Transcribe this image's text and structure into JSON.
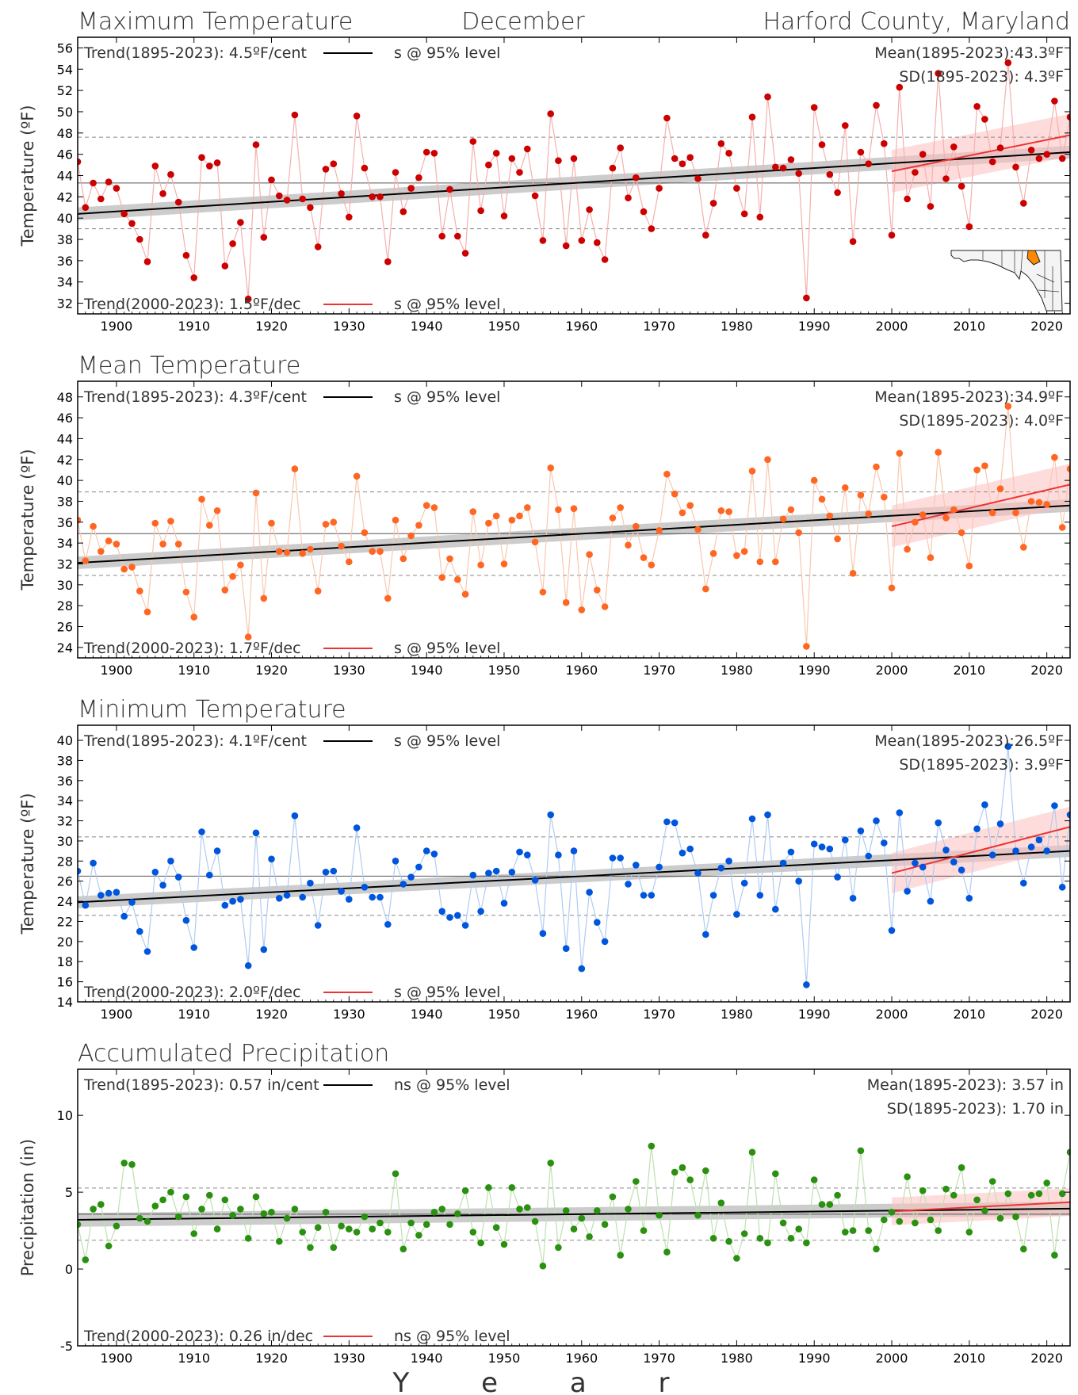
{
  "header": {
    "left": "Maximum Temperature",
    "center": "December",
    "right": "Harford County, Maryland"
  },
  "xlabel": "Y e a r",
  "colors": {
    "trend_long": "#000000",
    "trend_recent": "#ee3333",
    "band_long": "#bbbbbb",
    "band_recent": "#ffc0c0"
  },
  "chart_data": [
    {
      "type": "line",
      "title": "",
      "xlabel": "Year",
      "ylabel": "Temperature (ºF)",
      "xlim": [
        1895,
        2023
      ],
      "ylim": [
        31,
        57
      ],
      "xticks": [
        1900,
        1910,
        1920,
        1930,
        1940,
        1950,
        1960,
        1970,
        1980,
        1990,
        2000,
        2010,
        2020
      ],
      "yticks": [
        32,
        34,
        36,
        38,
        40,
        42,
        44,
        46,
        48,
        50,
        52,
        54,
        56
      ],
      "mean": 43.3,
      "sd": 4.3,
      "trend_long": {
        "y0": 40.4,
        "y1": 46.2,
        "band": 0.6
      },
      "trend_recent": {
        "y0": 44.4,
        "y1": 47.8,
        "band": 2.0
      },
      "texts": {
        "trend_long": "Trend(1895-2023):  4.5ºF/cent",
        "sig_long": "s @ 95% level",
        "mean": "Mean(1895-2023):43.3ºF",
        "sd": "SD(1895-2023): 4.3ºF",
        "trend_recent": "Trend(2000-2023):  1.5ºF/dec",
        "sig_recent": "s @ 95% level"
      },
      "point_color": "#cc0000",
      "line_color": "#f4b0b0",
      "x_start": 1895,
      "values": [
        45.3,
        41.0,
        43.3,
        41.8,
        43.4,
        42.8,
        40.4,
        39.5,
        38.0,
        35.9,
        44.9,
        42.3,
        44.1,
        41.5,
        36.5,
        34.4,
        45.7,
        44.9,
        45.2,
        35.5,
        37.6,
        39.6,
        32.4,
        46.9,
        38.2,
        43.6,
        42.1,
        41.7,
        49.7,
        41.8,
        41.0,
        37.3,
        44.6,
        45.1,
        42.3,
        40.1,
        49.6,
        44.7,
        42.0,
        42.0,
        35.9,
        44.3,
        40.6,
        42.8,
        43.8,
        46.2,
        46.1,
        38.3,
        42.7,
        38.3,
        36.7,
        47.2,
        40.7,
        45.0,
        46.1,
        40.2,
        45.6,
        44.3,
        46.5,
        42.1,
        37.9,
        49.8,
        45.4,
        37.4,
        45.6,
        37.9,
        40.8,
        37.7,
        36.1,
        44.7,
        46.6,
        41.9,
        43.8,
        40.6,
        39.0,
        42.8,
        49.4,
        45.6,
        45.1,
        45.7,
        43.7,
        38.4,
        41.4,
        47.0,
        46.1,
        42.8,
        40.4,
        49.5,
        40.1,
        51.4,
        44.8,
        44.7,
        45.5,
        44.2,
        32.5,
        50.4,
        46.9,
        44.1,
        42.4,
        48.7,
        37.8,
        46.2,
        45.1,
        50.6,
        47.0,
        38.4,
        52.3,
        41.8,
        44.3,
        46.0,
        41.1,
        53.6,
        43.7,
        46.7,
        43.0,
        39.2,
        50.5,
        49.3,
        45.3,
        46.6,
        54.6,
        44.8,
        41.4,
        46.4,
        45.6,
        46.0,
        51.0,
        45.6,
        49.5
      ]
    },
    {
      "type": "line",
      "title": "Mean Temperature",
      "xlabel": "Year",
      "ylabel": "Temperature (ºF)",
      "xlim": [
        1895,
        2023
      ],
      "ylim": [
        23,
        49.5
      ],
      "xticks": [
        1900,
        1910,
        1920,
        1930,
        1940,
        1950,
        1960,
        1970,
        1980,
        1990,
        2000,
        2010,
        2020
      ],
      "yticks": [
        24,
        26,
        28,
        30,
        32,
        34,
        36,
        38,
        40,
        42,
        44,
        46,
        48
      ],
      "mean": 34.9,
      "sd": 4.0,
      "trend_long": {
        "y0": 32.1,
        "y1": 37.6,
        "band": 0.6
      },
      "trend_recent": {
        "y0": 35.6,
        "y1": 39.6,
        "band": 2.0
      },
      "texts": {
        "trend_long": "Trend(1895-2023):  4.3ºF/cent",
        "sig_long": "s @ 95% level",
        "mean": "Mean(1895-2023):34.9ºF",
        "sd": "SD(1895-2023): 4.0ºF",
        "trend_recent": "Trend(2000-2023):  1.7ºF/dec",
        "sig_recent": "s @ 95% level"
      },
      "point_color": "#ff6622",
      "line_color": "#f8c8b0",
      "x_start": 1895,
      "values": [
        36.2,
        32.3,
        35.6,
        33.2,
        34.2,
        33.9,
        31.5,
        31.7,
        29.4,
        27.4,
        35.9,
        33.9,
        36.1,
        33.9,
        29.3,
        26.9,
        38.2,
        35.7,
        37.1,
        29.5,
        30.8,
        31.9,
        25.0,
        38.8,
        28.7,
        35.9,
        33.2,
        33.1,
        41.1,
        33.0,
        33.4,
        29.4,
        35.8,
        36.0,
        33.7,
        32.2,
        40.4,
        35.0,
        33.2,
        33.2,
        28.7,
        36.2,
        32.5,
        34.7,
        35.7,
        37.6,
        37.4,
        30.7,
        32.5,
        30.5,
        29.1,
        37.0,
        31.9,
        35.9,
        36.6,
        32.0,
        36.2,
        36.6,
        37.4,
        34.1,
        29.3,
        41.2,
        37.2,
        28.3,
        37.3,
        27.6,
        32.9,
        29.5,
        27.9,
        36.4,
        37.4,
        33.8,
        35.6,
        32.6,
        31.9,
        35.2,
        40.6,
        38.7,
        36.9,
        37.6,
        35.3,
        29.6,
        33.0,
        37.1,
        37.0,
        32.8,
        33.2,
        40.9,
        32.2,
        42.0,
        32.2,
        36.3,
        37.2,
        35.0,
        24.1,
        40.0,
        38.2,
        36.6,
        34.4,
        39.3,
        31.1,
        38.6,
        36.8,
        41.3,
        38.4,
        29.7,
        42.6,
        33.4,
        36.0,
        36.7,
        32.6,
        42.7,
        36.4,
        37.2,
        35.0,
        31.8,
        41.0,
        41.4,
        36.9,
        39.2,
        47.1,
        36.9,
        33.6,
        38.0,
        37.9,
        37.7,
        42.2,
        35.5,
        41.1
      ]
    },
    {
      "type": "line",
      "title": "Minimum Temperature",
      "xlabel": "Year",
      "ylabel": "Temperature (ºF)",
      "xlim": [
        1895,
        2023
      ],
      "ylim": [
        14,
        41.5
      ],
      "xticks": [
        1900,
        1910,
        1920,
        1930,
        1940,
        1950,
        1960,
        1970,
        1980,
        1990,
        2000,
        2010,
        2020
      ],
      "yticks": [
        14,
        16,
        18,
        20,
        22,
        24,
        26,
        28,
        30,
        32,
        34,
        36,
        38,
        40
      ],
      "mean": 26.5,
      "sd": 3.9,
      "trend_long": {
        "y0": 23.9,
        "y1": 29.0,
        "band": 0.6
      },
      "trend_recent": {
        "y0": 26.8,
        "y1": 31.4,
        "band": 2.0
      },
      "texts": {
        "trend_long": "Trend(1895-2023):  4.1ºF/cent",
        "sig_long": "s @ 95% level",
        "mean": "Mean(1895-2023):26.5ºF",
        "sd": "SD(1895-2023): 3.9ºF",
        "trend_recent": "Trend(2000-2023):  2.0ºF/dec",
        "sig_recent": "s @ 95% level"
      },
      "point_color": "#0055dd",
      "line_color": "#b0ccf2",
      "x_start": 1895,
      "values": [
        27.0,
        23.6,
        27.8,
        24.6,
        24.8,
        24.9,
        22.5,
        23.9,
        21.0,
        19.0,
        26.9,
        25.6,
        28.0,
        26.4,
        22.1,
        19.4,
        30.9,
        26.6,
        29.0,
        23.6,
        24.0,
        24.2,
        17.6,
        30.8,
        19.2,
        28.2,
        24.3,
        24.6,
        32.5,
        24.4,
        25.8,
        21.6,
        26.9,
        27.0,
        25.0,
        24.2,
        31.3,
        25.4,
        24.4,
        24.4,
        21.7,
        28.0,
        25.7,
        26.4,
        27.4,
        29.0,
        28.7,
        23.0,
        22.4,
        22.6,
        21.6,
        26.6,
        23.0,
        26.8,
        27.0,
        23.8,
        26.9,
        28.9,
        28.6,
        26.1,
        20.8,
        32.6,
        28.6,
        19.3,
        29.0,
        17.3,
        24.9,
        21.9,
        20.0,
        28.3,
        28.3,
        25.7,
        27.6,
        24.6,
        24.6,
        27.4,
        31.9,
        31.8,
        28.8,
        29.2,
        26.8,
        20.7,
        24.6,
        27.3,
        28.0,
        22.7,
        25.8,
        32.2,
        24.6,
        32.6,
        23.2,
        27.8,
        28.9,
        26.0,
        15.7,
        29.7,
        29.4,
        29.2,
        26.4,
        30.1,
        24.3,
        31.0,
        28.5,
        32.0,
        29.8,
        21.1,
        32.8,
        25.0,
        27.8,
        27.4,
        24.0,
        31.8,
        29.1,
        27.9,
        27.1,
        24.3,
        31.2,
        33.6,
        28.6,
        31.7,
        39.4,
        29.0,
        25.8,
        29.4,
        30.1,
        29.0,
        33.5,
        25.4,
        32.6
      ]
    },
    {
      "type": "line",
      "title": "Accumulated Precipitation",
      "xlabel": "Year",
      "ylabel": "Precipitation (in)",
      "xlim": [
        1895,
        2023
      ],
      "ylim": [
        -5,
        13
      ],
      "xticks": [
        1900,
        1910,
        1920,
        1930,
        1940,
        1950,
        1960,
        1970,
        1980,
        1990,
        2000,
        2010,
        2020
      ],
      "yticks": [
        -5,
        0,
        5,
        10
      ],
      "mean": 3.57,
      "sd": 1.7,
      "trend_long": {
        "y0": 3.2,
        "y1": 3.93,
        "band": 0.45
      },
      "trend_recent": {
        "y0": 3.75,
        "y1": 4.35,
        "band": 0.9
      },
      "texts": {
        "trend_long": "Trend(1895-2023):  0.57 in/cent",
        "sig_long": "ns @ 95% level",
        "mean": "Mean(1895-2023): 3.57 in",
        "sd": "SD(1895-2023): 1.70 in",
        "trend_recent": "Trend(2000-2023):  0.26 in/dec",
        "sig_recent": "ns @ 95% level"
      },
      "point_color": "#2a9010",
      "line_color": "#bfe0b0",
      "x_start": 1895,
      "values": [
        2.9,
        0.6,
        3.9,
        4.2,
        1.5,
        2.8,
        6.9,
        6.8,
        3.3,
        3.1,
        4.1,
        4.5,
        5.0,
        3.4,
        4.7,
        2.3,
        3.9,
        4.8,
        2.6,
        4.5,
        3.5,
        3.9,
        2.0,
        4.7,
        3.6,
        3.7,
        1.8,
        3.3,
        3.9,
        2.4,
        1.4,
        2.7,
        3.7,
        1.4,
        2.8,
        2.6,
        2.4,
        3.4,
        2.6,
        3.0,
        2.4,
        6.2,
        1.3,
        3.0,
        2.2,
        2.9,
        3.7,
        3.9,
        2.9,
        3.6,
        5.1,
        2.4,
        1.7,
        5.3,
        2.7,
        1.6,
        5.3,
        3.9,
        4.0,
        3.1,
        0.2,
        6.9,
        1.4,
        3.8,
        2.6,
        3.3,
        2.1,
        3.8,
        2.9,
        4.7,
        0.9,
        3.9,
        5.7,
        2.5,
        8.0,
        3.5,
        1.1,
        6.3,
        6.6,
        5.8,
        3.5,
        6.4,
        2.0,
        4.3,
        1.8,
        0.7,
        2.3,
        7.6,
        2.0,
        1.7,
        6.2,
        3.0,
        2.0,
        2.6,
        1.7,
        5.8,
        4.2,
        4.2,
        4.8,
        2.4,
        2.5,
        7.7,
        2.5,
        1.3,
        3.2,
        3.7,
        3.1,
        6.0,
        3.0,
        5.1,
        3.2,
        2.5,
        5.2,
        4.8,
        6.6,
        2.4,
        4.5,
        3.8,
        5.7,
        3.3,
        4.9,
        3.4,
        1.3,
        4.8,
        4.9,
        5.6,
        0.9,
        4.9,
        7.6
      ]
    }
  ]
}
